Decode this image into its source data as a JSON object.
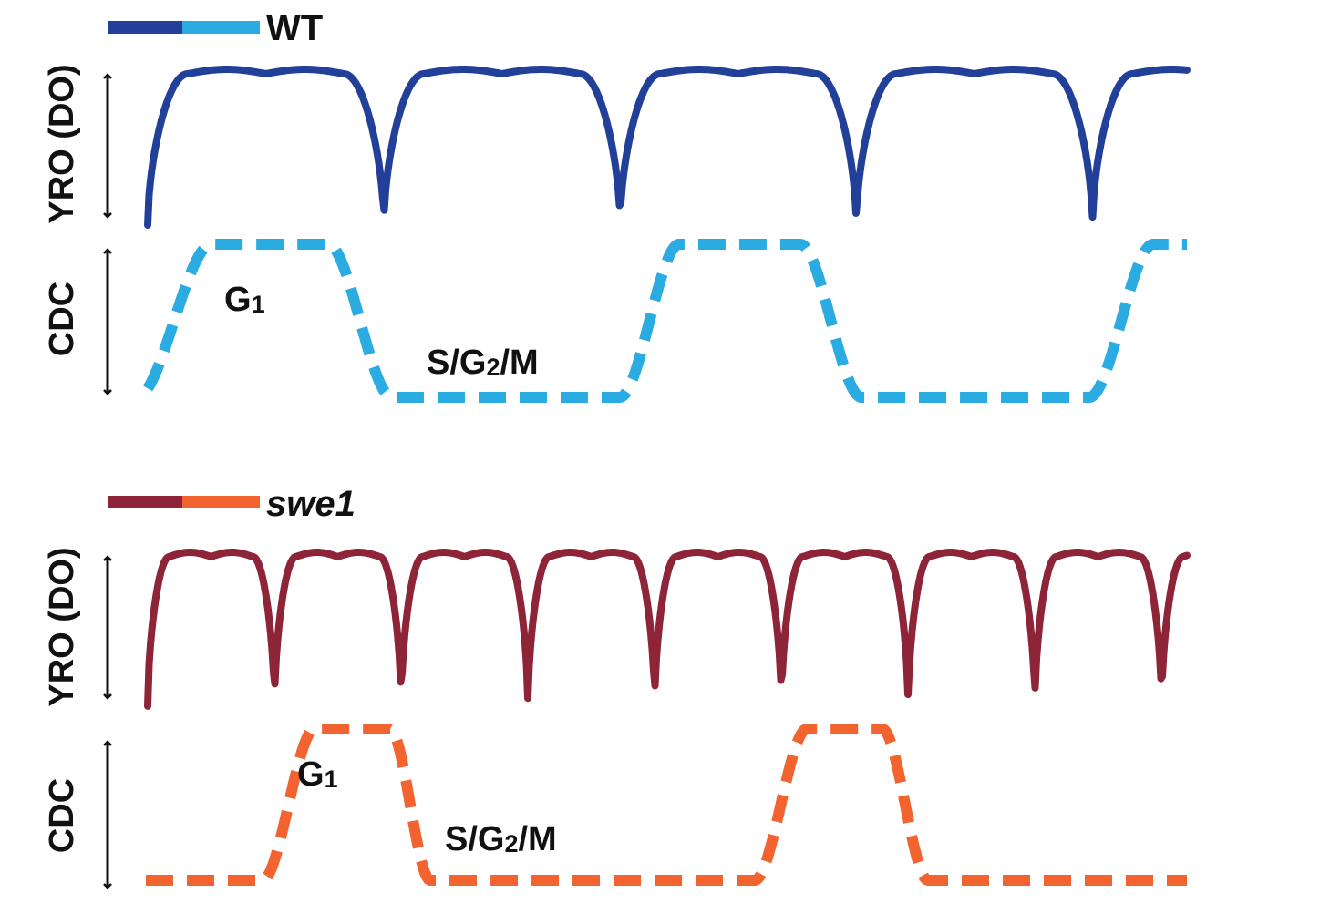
{
  "panels": [
    {
      "id": "wt",
      "legend": {
        "label": "WT",
        "italic": false,
        "colors": [
          "#22409A",
          "#2AABE2"
        ]
      },
      "axis_labels": {
        "yro": "YRO (DO)",
        "cdc": "CDC"
      },
      "yro": {
        "color": "#22409A",
        "cycles": 4.4
      },
      "cdc": {
        "color": "#2AABE2",
        "dashed": true,
        "g1_fraction": 0.5
      },
      "phase_labels": {
        "g1": "G",
        "g1_sub": "1",
        "s_pre": "S/G",
        "s_sub": "2",
        "s_post": "/M"
      }
    },
    {
      "id": "swe1",
      "legend": {
        "label": "swe1",
        "italic": true,
        "colors": [
          "#8E2437",
          "#F26330"
        ]
      },
      "axis_labels": {
        "yro": "YRO (DO)",
        "cdc": "CDC"
      },
      "yro": {
        "color": "#8E2437",
        "cycles": 8.2
      },
      "cdc": {
        "color": "#F26330",
        "dashed": true,
        "g1_fraction": 0.25
      },
      "phase_labels": {
        "g1": "G",
        "g1_sub": "1",
        "s_pre": "S/G",
        "s_sub": "2",
        "s_post": "/M"
      }
    }
  ]
}
